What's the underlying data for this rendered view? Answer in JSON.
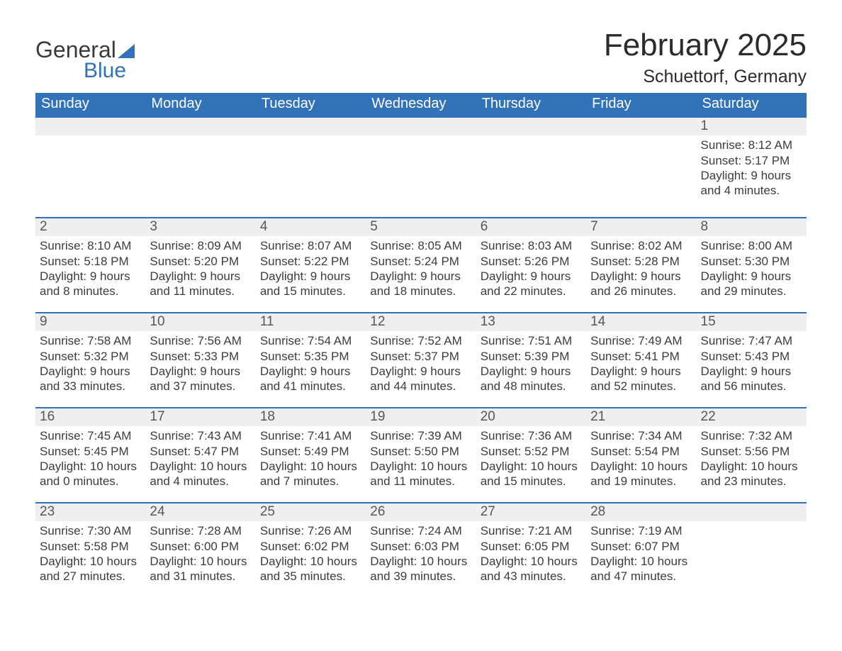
{
  "brand": {
    "word1": "General",
    "word2": "Blue",
    "accent_color": "#3172b8"
  },
  "title": "February 2025",
  "location": "Schuettorf, Germany",
  "columns": [
    "Sunday",
    "Monday",
    "Tuesday",
    "Wednesday",
    "Thursday",
    "Friday",
    "Saturday"
  ],
  "colors": {
    "header_bg": "#3172b8",
    "header_text": "#ffffff",
    "daynum_bg": "#efefef",
    "daynum_border": "#3172b8",
    "body_text": "#3c3c3c",
    "page_bg": "#ffffff"
  },
  "weeks": [
    {
      "days": [
        null,
        null,
        null,
        null,
        null,
        null,
        {
          "num": "1",
          "sunrise": "Sunrise: 8:12 AM",
          "sunset": "Sunset: 5:17 PM",
          "day1": "Daylight: 9 hours",
          "day2": "and 4 minutes."
        }
      ]
    },
    {
      "days": [
        {
          "num": "2",
          "sunrise": "Sunrise: 8:10 AM",
          "sunset": "Sunset: 5:18 PM",
          "day1": "Daylight: 9 hours",
          "day2": "and 8 minutes."
        },
        {
          "num": "3",
          "sunrise": "Sunrise: 8:09 AM",
          "sunset": "Sunset: 5:20 PM",
          "day1": "Daylight: 9 hours",
          "day2": "and 11 minutes."
        },
        {
          "num": "4",
          "sunrise": "Sunrise: 8:07 AM",
          "sunset": "Sunset: 5:22 PM",
          "day1": "Daylight: 9 hours",
          "day2": "and 15 minutes."
        },
        {
          "num": "5",
          "sunrise": "Sunrise: 8:05 AM",
          "sunset": "Sunset: 5:24 PM",
          "day1": "Daylight: 9 hours",
          "day2": "and 18 minutes."
        },
        {
          "num": "6",
          "sunrise": "Sunrise: 8:03 AM",
          "sunset": "Sunset: 5:26 PM",
          "day1": "Daylight: 9 hours",
          "day2": "and 22 minutes."
        },
        {
          "num": "7",
          "sunrise": "Sunrise: 8:02 AM",
          "sunset": "Sunset: 5:28 PM",
          "day1": "Daylight: 9 hours",
          "day2": "and 26 minutes."
        },
        {
          "num": "8",
          "sunrise": "Sunrise: 8:00 AM",
          "sunset": "Sunset: 5:30 PM",
          "day1": "Daylight: 9 hours",
          "day2": "and 29 minutes."
        }
      ]
    },
    {
      "days": [
        {
          "num": "9",
          "sunrise": "Sunrise: 7:58 AM",
          "sunset": "Sunset: 5:32 PM",
          "day1": "Daylight: 9 hours",
          "day2": "and 33 minutes."
        },
        {
          "num": "10",
          "sunrise": "Sunrise: 7:56 AM",
          "sunset": "Sunset: 5:33 PM",
          "day1": "Daylight: 9 hours",
          "day2": "and 37 minutes."
        },
        {
          "num": "11",
          "sunrise": "Sunrise: 7:54 AM",
          "sunset": "Sunset: 5:35 PM",
          "day1": "Daylight: 9 hours",
          "day2": "and 41 minutes."
        },
        {
          "num": "12",
          "sunrise": "Sunrise: 7:52 AM",
          "sunset": "Sunset: 5:37 PM",
          "day1": "Daylight: 9 hours",
          "day2": "and 44 minutes."
        },
        {
          "num": "13",
          "sunrise": "Sunrise: 7:51 AM",
          "sunset": "Sunset: 5:39 PM",
          "day1": "Daylight: 9 hours",
          "day2": "and 48 minutes."
        },
        {
          "num": "14",
          "sunrise": "Sunrise: 7:49 AM",
          "sunset": "Sunset: 5:41 PM",
          "day1": "Daylight: 9 hours",
          "day2": "and 52 minutes."
        },
        {
          "num": "15",
          "sunrise": "Sunrise: 7:47 AM",
          "sunset": "Sunset: 5:43 PM",
          "day1": "Daylight: 9 hours",
          "day2": "and 56 minutes."
        }
      ]
    },
    {
      "days": [
        {
          "num": "16",
          "sunrise": "Sunrise: 7:45 AM",
          "sunset": "Sunset: 5:45 PM",
          "day1": "Daylight: 10 hours",
          "day2": "and 0 minutes."
        },
        {
          "num": "17",
          "sunrise": "Sunrise: 7:43 AM",
          "sunset": "Sunset: 5:47 PM",
          "day1": "Daylight: 10 hours",
          "day2": "and 4 minutes."
        },
        {
          "num": "18",
          "sunrise": "Sunrise: 7:41 AM",
          "sunset": "Sunset: 5:49 PM",
          "day1": "Daylight: 10 hours",
          "day2": "and 7 minutes."
        },
        {
          "num": "19",
          "sunrise": "Sunrise: 7:39 AM",
          "sunset": "Sunset: 5:50 PM",
          "day1": "Daylight: 10 hours",
          "day2": "and 11 minutes."
        },
        {
          "num": "20",
          "sunrise": "Sunrise: 7:36 AM",
          "sunset": "Sunset: 5:52 PM",
          "day1": "Daylight: 10 hours",
          "day2": "and 15 minutes."
        },
        {
          "num": "21",
          "sunrise": "Sunrise: 7:34 AM",
          "sunset": "Sunset: 5:54 PM",
          "day1": "Daylight: 10 hours",
          "day2": "and 19 minutes."
        },
        {
          "num": "22",
          "sunrise": "Sunrise: 7:32 AM",
          "sunset": "Sunset: 5:56 PM",
          "day1": "Daylight: 10 hours",
          "day2": "and 23 minutes."
        }
      ]
    },
    {
      "days": [
        {
          "num": "23",
          "sunrise": "Sunrise: 7:30 AM",
          "sunset": "Sunset: 5:58 PM",
          "day1": "Daylight: 10 hours",
          "day2": "and 27 minutes."
        },
        {
          "num": "24",
          "sunrise": "Sunrise: 7:28 AM",
          "sunset": "Sunset: 6:00 PM",
          "day1": "Daylight: 10 hours",
          "day2": "and 31 minutes."
        },
        {
          "num": "25",
          "sunrise": "Sunrise: 7:26 AM",
          "sunset": "Sunset: 6:02 PM",
          "day1": "Daylight: 10 hours",
          "day2": "and 35 minutes."
        },
        {
          "num": "26",
          "sunrise": "Sunrise: 7:24 AM",
          "sunset": "Sunset: 6:03 PM",
          "day1": "Daylight: 10 hours",
          "day2": "and 39 minutes."
        },
        {
          "num": "27",
          "sunrise": "Sunrise: 7:21 AM",
          "sunset": "Sunset: 6:05 PM",
          "day1": "Daylight: 10 hours",
          "day2": "and 43 minutes."
        },
        {
          "num": "28",
          "sunrise": "Sunrise: 7:19 AM",
          "sunset": "Sunset: 6:07 PM",
          "day1": "Daylight: 10 hours",
          "day2": "and 47 minutes."
        },
        null
      ]
    }
  ]
}
